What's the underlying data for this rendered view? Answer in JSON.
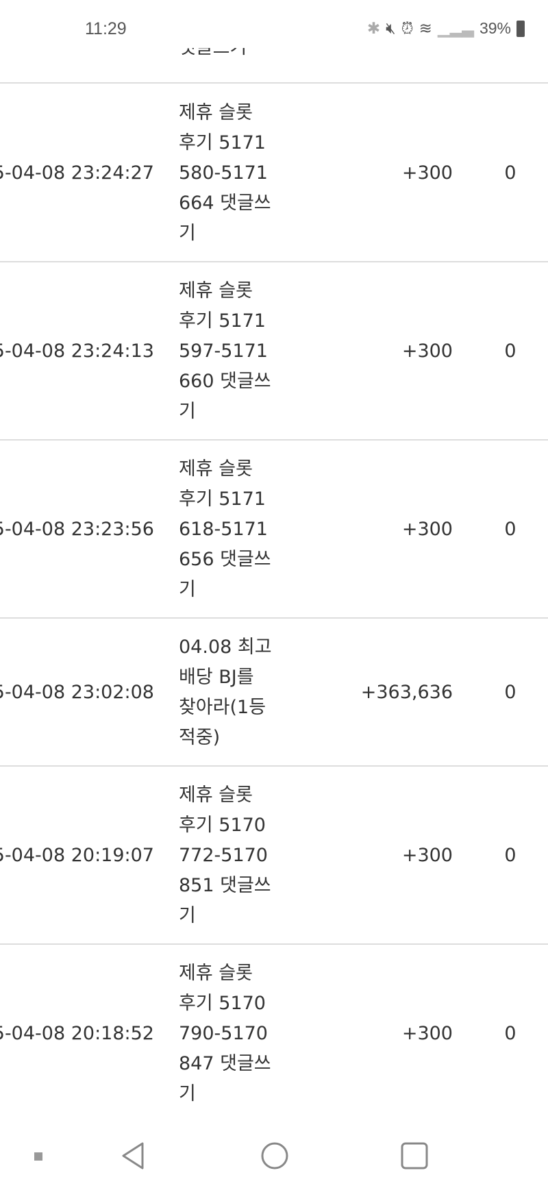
{
  "status_bar": {
    "time": "11:29",
    "battery": "39%",
    "icons": [
      "bluetooth-icon",
      "mute-vibrate-icon",
      "alarm-icon",
      "wifi-icon",
      "signal-icon",
      "battery-icon"
    ]
  },
  "partial_row": {
    "title": "댓글쓰기"
  },
  "rows": [
    {
      "date": "5-04-08 23:24:27",
      "title": "제휴 슬롯 후기 5171580-5171664 댓글쓰기",
      "amount": "+300",
      "balance": "0"
    },
    {
      "date": "5-04-08 23:24:13",
      "title": "제휴 슬롯 후기 5171597-5171660 댓글쓰기",
      "amount": "+300",
      "balance": "0"
    },
    {
      "date": "5-04-08 23:23:56",
      "title": "제휴 슬롯 후기 5171618-5171656 댓글쓰기",
      "amount": "+300",
      "balance": "0"
    },
    {
      "date": "5-04-08 23:02:08",
      "title": "04.08 최고 배당 BJ를 찾아라(1등 적중)",
      "amount": "+363,636",
      "balance": "0"
    },
    {
      "date": "5-04-08 20:19:07",
      "title": "제휴 슬롯 후기 5170772-5170851 댓글쓰기",
      "amount": "+300",
      "balance": "0"
    },
    {
      "date": "5-04-08 20:18:52",
      "title": "제휴 슬롯 후기 5170790-5170847 댓글쓰기",
      "amount": "+300",
      "balance": "0"
    }
  ]
}
